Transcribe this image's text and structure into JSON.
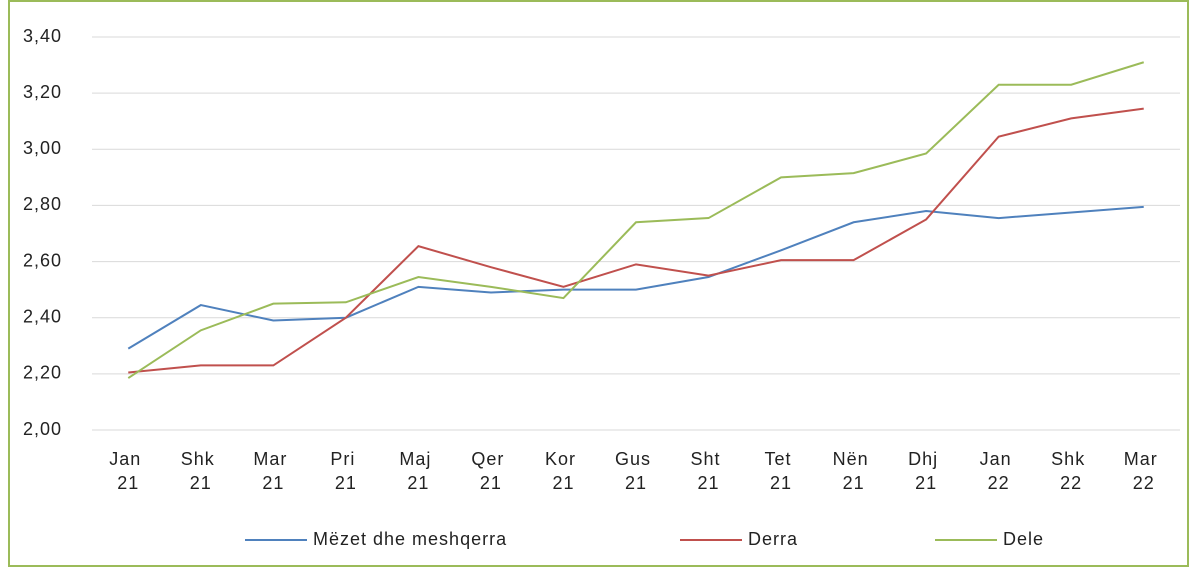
{
  "chart_data": {
    "type": "line",
    "categories": [
      "Jan 21",
      "Shk 21",
      "Mar 21",
      "Pri 21",
      "Maj 21",
      "Qer 21",
      "Kor 21",
      "Gus 21",
      "Sht 21",
      "Tet 21",
      "Nën 21",
      "Dhj 21",
      "Jan 22",
      "Shk 22",
      "Mar 22"
    ],
    "series": [
      {
        "name": "Mëzet dhe meshqerra",
        "color": "#4f81bd",
        "values": [
          2.29,
          2.445,
          2.39,
          2.4,
          2.51,
          2.49,
          2.5,
          2.5,
          2.545,
          2.64,
          2.74,
          2.78,
          2.755,
          2.775,
          2.795
        ]
      },
      {
        "name": "Derra",
        "color": "#c0504d",
        "values": [
          2.205,
          2.23,
          2.23,
          2.4,
          2.655,
          2.58,
          2.51,
          2.59,
          2.55,
          2.605,
          2.605,
          2.75,
          3.045,
          3.11,
          3.145
        ]
      },
      {
        "name": "Dele",
        "color": "#9bbb59",
        "values": [
          2.185,
          2.355,
          2.45,
          2.455,
          2.545,
          2.51,
          2.47,
          2.74,
          2.755,
          2.9,
          2.915,
          2.985,
          3.23,
          3.23,
          3.31
        ]
      }
    ],
    "ylim": [
      2.0,
      3.4
    ],
    "yticks": [
      {
        "value": 2.0,
        "label": "2,00"
      },
      {
        "value": 2.2,
        "label": "2,20"
      },
      {
        "value": 2.4,
        "label": "2,40"
      },
      {
        "value": 2.6,
        "label": "2,60"
      },
      {
        "value": 2.8,
        "label": "2,80"
      },
      {
        "value": 3.0,
        "label": "3,00"
      },
      {
        "value": 3.2,
        "label": "3,20"
      },
      {
        "value": 3.4,
        "label": "3,40"
      }
    ],
    "grid": true,
    "legend": "bottom"
  }
}
